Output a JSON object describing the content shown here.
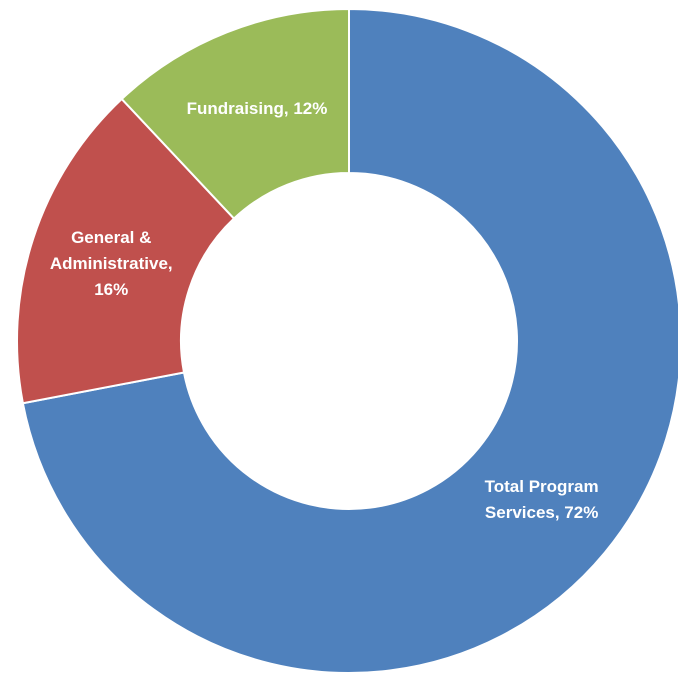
{
  "chart_data": {
    "type": "donut",
    "values": [
      72,
      16,
      12
    ],
    "value_labels": [
      "Total Program Services, 72%",
      "General & Administrative, 16%",
      "Fundraising, 12%"
    ],
    "colors": [
      "#4f81bd",
      "#c0504d",
      "#9bbb59"
    ]
  }
}
